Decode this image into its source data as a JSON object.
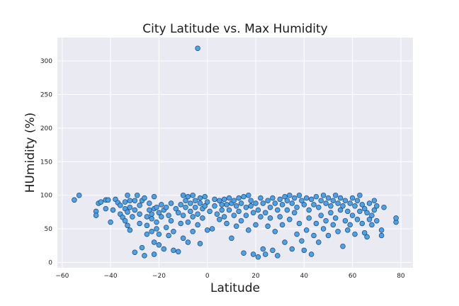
{
  "chart_data": {
    "type": "scatter",
    "title": "City Latitude vs. Max Humidity",
    "xlabel": "Latitude",
    "ylabel": "HUmidity (%)",
    "xlim": [
      -62,
      85
    ],
    "ylim": [
      -8,
      335
    ],
    "x_ticks": [
      -60,
      -40,
      -20,
      0,
      20,
      40,
      60,
      80
    ],
    "y_ticks": [
      0,
      50,
      100,
      150,
      200,
      250,
      300
    ],
    "x_tick_labels": [
      "−60",
      "−40",
      "−20",
      "0",
      "20",
      "40",
      "60",
      "80"
    ],
    "y_tick_labels": [
      "0",
      "50",
      "100",
      "150",
      "200",
      "250",
      "300"
    ],
    "grid": true,
    "colors": {
      "marker_fill": "#4aa3e8",
      "marker_edge": "#1f3f6e",
      "plot_bg": "#eaeaf2",
      "grid": "#ffffff"
    },
    "points": [
      [
        -4,
        319
      ],
      [
        -55,
        93
      ],
      [
        -53,
        100
      ],
      [
        -46,
        76
      ],
      [
        -46,
        70
      ],
      [
        -45,
        88
      ],
      [
        -44,
        90
      ],
      [
        -42,
        93
      ],
      [
        -42,
        80
      ],
      [
        -41,
        93
      ],
      [
        -40,
        60
      ],
      [
        -39,
        78
      ],
      [
        -38,
        94
      ],
      [
        -37,
        89
      ],
      [
        -36,
        72
      ],
      [
        -36,
        85
      ],
      [
        -35,
        67
      ],
      [
        -34,
        90
      ],
      [
        -34,
        80
      ],
      [
        -34,
        62
      ],
      [
        -33,
        100
      ],
      [
        -33,
        75
      ],
      [
        -33,
        55
      ],
      [
        -32,
        92
      ],
      [
        -32,
        82
      ],
      [
        -32,
        48
      ],
      [
        -31,
        68
      ],
      [
        -30,
        78
      ],
      [
        -30,
        92
      ],
      [
        -30,
        15
      ],
      [
        -29,
        100
      ],
      [
        -28,
        85
      ],
      [
        -28,
        72
      ],
      [
        -28,
        58
      ],
      [
        -27,
        92
      ],
      [
        -27,
        22
      ],
      [
        -26,
        10
      ],
      [
        -26,
        96
      ],
      [
        -25,
        68
      ],
      [
        -25,
        55
      ],
      [
        -25,
        42
      ],
      [
        -24,
        78
      ],
      [
        -24,
        88
      ],
      [
        -23,
        72
      ],
      [
        -23,
        65
      ],
      [
        -23,
        46
      ],
      [
        -22,
        98
      ],
      [
        -22,
        80
      ],
      [
        -22,
        30
      ],
      [
        -22,
        12
      ],
      [
        -21,
        82
      ],
      [
        -21,
        60
      ],
      [
        -21,
        50
      ],
      [
        -20,
        74
      ],
      [
        -20,
        42
      ],
      [
        -20,
        26
      ],
      [
        -19,
        86
      ],
      [
        -19,
        68
      ],
      [
        -18,
        20
      ],
      [
        -18,
        78
      ],
      [
        -17,
        82
      ],
      [
        -17,
        52
      ],
      [
        -16,
        70
      ],
      [
        -16,
        40
      ],
      [
        -15,
        88
      ],
      [
        -15,
        62
      ],
      [
        -14,
        46
      ],
      [
        -14,
        18
      ],
      [
        -13,
        80
      ],
      [
        -12,
        74
      ],
      [
        -12,
        16
      ],
      [
        -11,
        86
      ],
      [
        -11,
        58
      ],
      [
        -10,
        100
      ],
      [
        -10,
        70
      ],
      [
        -10,
        36
      ],
      [
        -9,
        92
      ],
      [
        -9,
        82
      ],
      [
        -8,
        98
      ],
      [
        -8,
        60
      ],
      [
        -8,
        30
      ],
      [
        -7,
        88
      ],
      [
        -7,
        76
      ],
      [
        -6,
        100
      ],
      [
        -6,
        68
      ],
      [
        -6,
        46
      ],
      [
        -5,
        92
      ],
      [
        -5,
        82
      ],
      [
        -4,
        72
      ],
      [
        -4,
        56
      ],
      [
        -3,
        96
      ],
      [
        -3,
        88
      ],
      [
        -3,
        28
      ],
      [
        -2,
        80
      ],
      [
        -2,
        66
      ],
      [
        -1,
        98
      ],
      [
        -1,
        84
      ],
      [
        0,
        48
      ],
      [
        0,
        90
      ],
      [
        1,
        76
      ],
      [
        2,
        50
      ],
      [
        3,
        94
      ],
      [
        3,
        84
      ],
      [
        4,
        72
      ],
      [
        5,
        92
      ],
      [
        5,
        64
      ],
      [
        6,
        86
      ],
      [
        6,
        78
      ],
      [
        7,
        94
      ],
      [
        7,
        68
      ],
      [
        8,
        86
      ],
      [
        8,
        58
      ],
      [
        9,
        96
      ],
      [
        9,
        78
      ],
      [
        10,
        88
      ],
      [
        10,
        36
      ],
      [
        11,
        70
      ],
      [
        11,
        92
      ],
      [
        12,
        84
      ],
      [
        12,
        54
      ],
      [
        13,
        96
      ],
      [
        13,
        76
      ],
      [
        14,
        88
      ],
      [
        14,
        62
      ],
      [
        15,
        98
      ],
      [
        15,
        14
      ],
      [
        16,
        82
      ],
      [
        16,
        70
      ],
      [
        17,
        100
      ],
      [
        17,
        48
      ],
      [
        18,
        92
      ],
      [
        18,
        84
      ],
      [
        19,
        74
      ],
      [
        19,
        12
      ],
      [
        20,
        88
      ],
      [
        20,
        56
      ],
      [
        21,
        78
      ],
      [
        21,
        8
      ],
      [
        22,
        96
      ],
      [
        22,
        68
      ],
      [
        23,
        20
      ],
      [
        23,
        88
      ],
      [
        24,
        74
      ],
      [
        24,
        12
      ],
      [
        25,
        92
      ],
      [
        25,
        54
      ],
      [
        26,
        82
      ],
      [
        26,
        66
      ],
      [
        27,
        96
      ],
      [
        27,
        18
      ],
      [
        28,
        88
      ],
      [
        28,
        46
      ],
      [
        29,
        78
      ],
      [
        29,
        10
      ],
      [
        30,
        94
      ],
      [
        30,
        68
      ],
      [
        31,
        86
      ],
      [
        31,
        56
      ],
      [
        32,
        98
      ],
      [
        32,
        30
      ],
      [
        33,
        92
      ],
      [
        33,
        78
      ],
      [
        34,
        100
      ],
      [
        34,
        64
      ],
      [
        35,
        88
      ],
      [
        35,
        20
      ],
      [
        36,
        96
      ],
      [
        36,
        74
      ],
      [
        37,
        82
      ],
      [
        37,
        42
      ],
      [
        38,
        100
      ],
      [
        38,
        58
      ],
      [
        39,
        92
      ],
      [
        39,
        32
      ],
      [
        40,
        86
      ],
      [
        40,
        18
      ],
      [
        41,
        96
      ],
      [
        41,
        48
      ],
      [
        42,
        78
      ],
      [
        42,
        66
      ],
      [
        43,
        94
      ],
      [
        43,
        12
      ],
      [
        44,
        86
      ],
      [
        44,
        40
      ],
      [
        45,
        98
      ],
      [
        45,
        58
      ],
      [
        46,
        82
      ],
      [
        46,
        30
      ],
      [
        47,
        92
      ],
      [
        47,
        70
      ],
      [
        48,
        100
      ],
      [
        48,
        50
      ],
      [
        49,
        88
      ],
      [
        49,
        62
      ],
      [
        50,
        96
      ],
      [
        50,
        40
      ],
      [
        51,
        84
      ],
      [
        51,
        74
      ],
      [
        52,
        92
      ],
      [
        52,
        56
      ],
      [
        53,
        100
      ],
      [
        53,
        66
      ],
      [
        54,
        88
      ],
      [
        54,
        46
      ],
      [
        55,
        96
      ],
      [
        55,
        78
      ],
      [
        56,
        84
      ],
      [
        56,
        24
      ],
      [
        57,
        92
      ],
      [
        57,
        62
      ],
      [
        58,
        76
      ],
      [
        58,
        48
      ],
      [
        59,
        88
      ],
      [
        59,
        56
      ],
      [
        60,
        96
      ],
      [
        60,
        70
      ],
      [
        61,
        84
      ],
      [
        61,
        42
      ],
      [
        62,
        92
      ],
      [
        62,
        64
      ],
      [
        63,
        100
      ],
      [
        63,
        76
      ],
      [
        64,
        86
      ],
      [
        64,
        58
      ],
      [
        65,
        80
      ],
      [
        65,
        44
      ],
      [
        66,
        74
      ],
      [
        66,
        38
      ],
      [
        67,
        88
      ],
      [
        67,
        64
      ],
      [
        68,
        70
      ],
      [
        68,
        56
      ],
      [
        69,
        92
      ],
      [
        69,
        78
      ],
      [
        70,
        84
      ],
      [
        70,
        62
      ],
      [
        72,
        48
      ],
      [
        72,
        40
      ],
      [
        73,
        82
      ],
      [
        78,
        60
      ],
      [
        78,
        66
      ]
    ]
  }
}
